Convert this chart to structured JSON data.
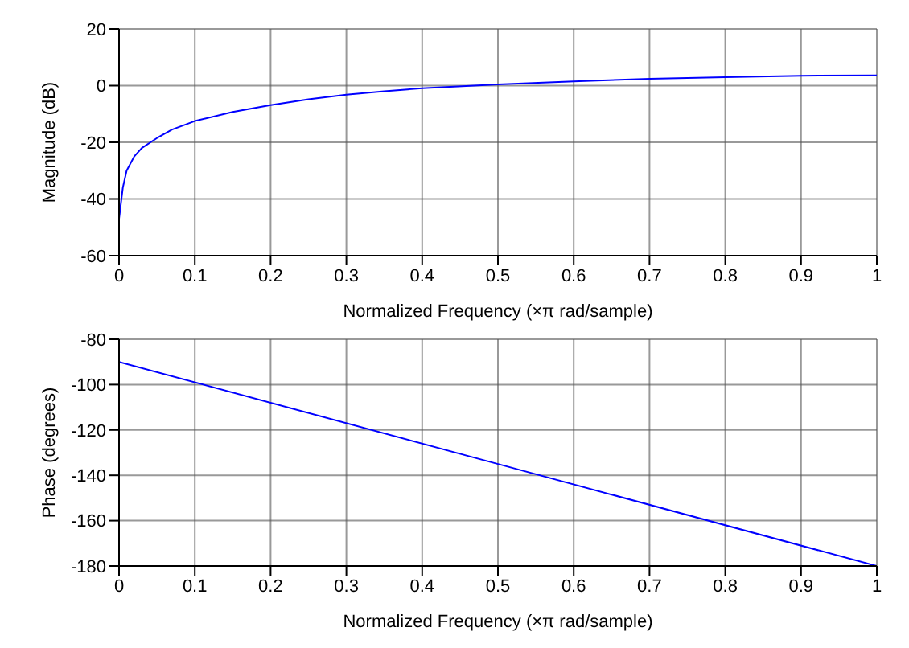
{
  "chart_data": [
    {
      "type": "line",
      "xlabel": "Normalized Frequency  (×π rad/sample)",
      "ylabel": "Magnitude (dB)",
      "xlim": [
        0,
        1
      ],
      "ylim": [
        -60,
        20
      ],
      "xticks": [
        0,
        0.1,
        0.2,
        0.3,
        0.4,
        0.5,
        0.6,
        0.7,
        0.8,
        0.9,
        1
      ],
      "yticks": [
        -60,
        -40,
        -20,
        0,
        20
      ],
      "grid": true,
      "line_style": "solid",
      "marker": "none",
      "series": [
        {
          "color": "#0000ff",
          "x": [
            0,
            0.005,
            0.01,
            0.02,
            0.03,
            0.05,
            0.07,
            0.1,
            0.15,
            0.2,
            0.25,
            0.3,
            0.35,
            0.4,
            0.5,
            0.6,
            0.7,
            0.8,
            0.9,
            1
          ],
          "values": [
            -47,
            -36,
            -30,
            -25,
            -22,
            -18.5,
            -15.5,
            -12.5,
            -9.3,
            -6.9,
            -4.8,
            -3.2,
            -2,
            -0.9,
            0.4,
            1.5,
            2.4,
            3,
            3.5,
            3.6
          ]
        }
      ]
    },
    {
      "type": "line",
      "xlabel": "Normalized Frequency  (×π rad/sample)",
      "ylabel": "Phase (degrees)",
      "xlim": [
        0,
        1
      ],
      "ylim": [
        -180,
        -80
      ],
      "xticks": [
        0,
        0.1,
        0.2,
        0.3,
        0.4,
        0.5,
        0.6,
        0.7,
        0.8,
        0.9,
        1
      ],
      "yticks": [
        -180,
        -160,
        -140,
        -120,
        -100,
        -80
      ],
      "grid": true,
      "line_style": "solid",
      "marker": "none",
      "series": [
        {
          "color": "#0000ff",
          "x": [
            0,
            0.5,
            1
          ],
          "values": [
            -90,
            -135,
            -180
          ]
        }
      ]
    }
  ]
}
